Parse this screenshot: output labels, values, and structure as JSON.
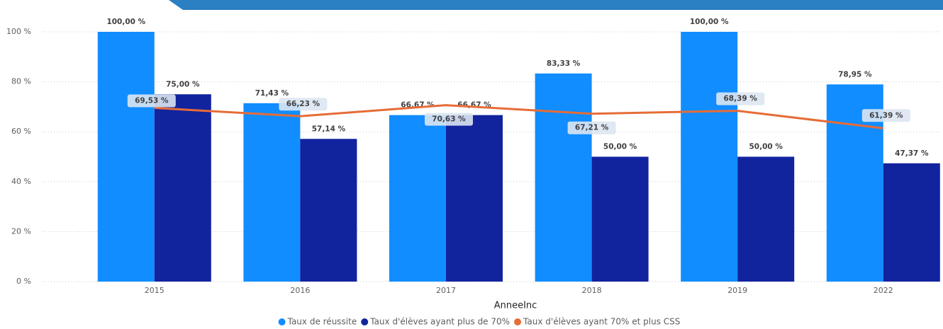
{
  "chart_data": {
    "type": "bar-line",
    "x_label": "AnneeInc",
    "categories": [
      "2015",
      "2016",
      "2017",
      "2018",
      "2019",
      "2022"
    ],
    "series": [
      {
        "name": "Taux de réussite",
        "type": "bar",
        "color": "#118DFF",
        "values": [
          100,
          71.43,
          66.67,
          83.33,
          100,
          78.95
        ],
        "value_labels": [
          "100,00 %",
          "71,43 %",
          "66,67 %",
          "83,33 %",
          "100,00 %",
          "78,95 %"
        ]
      },
      {
        "name": "Taux d'élèves ayant plus de 70%",
        "type": "bar",
        "color": "#12239E",
        "values": [
          75,
          57.14,
          66.67,
          50,
          50,
          47.37
        ],
        "value_labels": [
          "75,00 %",
          "57,14 %",
          "66,67 %",
          "50,00 %",
          "50,00 %",
          "47,37 %"
        ]
      },
      {
        "name": "Taux d'élèves ayant 70% et plus CSS",
        "type": "line",
        "color": "#E66C37",
        "values": [
          69.53,
          66.23,
          70.63,
          67.21,
          68.39,
          61.39
        ],
        "value_labels": [
          "69,53 %",
          "66,23 %",
          "70,63 %",
          "67,21 %",
          "68,39 %",
          "61,39 %"
        ]
      }
    ],
    "ylim": [
      0,
      100
    ],
    "yticks": [
      {
        "value": 0,
        "label": "0 %"
      },
      {
        "value": 20,
        "label": "20 %"
      },
      {
        "value": 40,
        "label": "40 %"
      },
      {
        "value": 60,
        "label": "60 %"
      },
      {
        "value": 80,
        "label": "80 %"
      },
      {
        "value": 100,
        "label": "100 %"
      }
    ],
    "grid": true,
    "legend": "bottom"
  }
}
